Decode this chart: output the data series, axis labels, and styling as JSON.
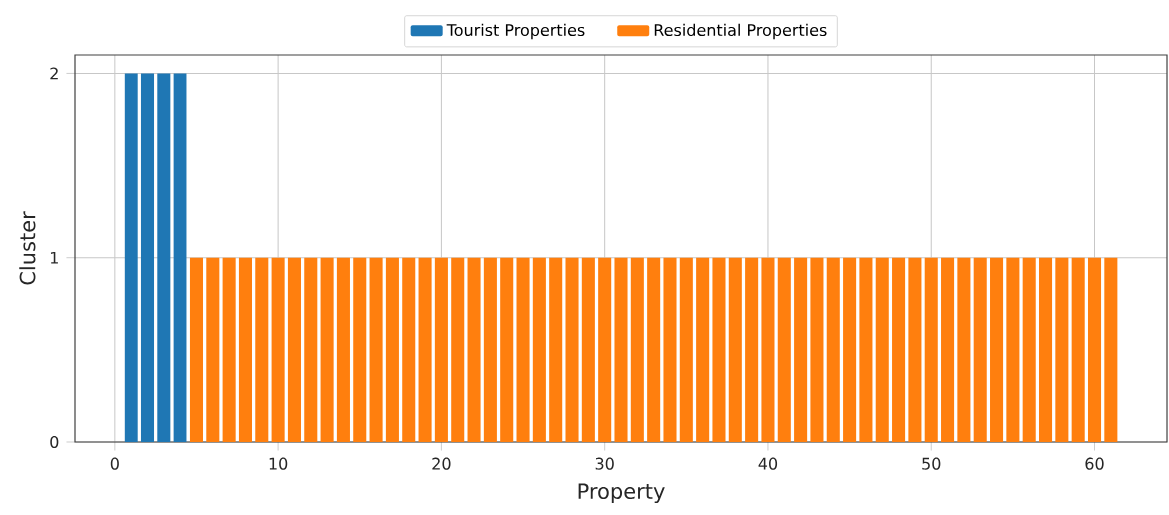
{
  "chart_data": {
    "type": "bar",
    "xlabel": "Property",
    "ylabel": "Cluster",
    "series": [
      {
        "name": "Tourist Properties",
        "color": "#1f77b4",
        "x": [
          1,
          2,
          3,
          4
        ],
        "values": [
          2,
          2,
          2,
          2
        ]
      },
      {
        "name": "Residential Properties",
        "color": "#ff7f0e",
        "x": [
          5,
          6,
          7,
          8,
          9,
          10,
          11,
          12,
          13,
          14,
          15,
          16,
          17,
          18,
          19,
          20,
          21,
          22,
          23,
          24,
          25,
          26,
          27,
          28,
          29,
          30,
          31,
          32,
          33,
          34,
          35,
          36,
          37,
          38,
          39,
          40,
          41,
          42,
          43,
          44,
          45,
          46,
          47,
          48,
          49,
          50,
          51,
          52,
          53,
          54,
          55,
          56,
          57,
          58,
          59,
          60,
          61
        ],
        "values": [
          1,
          1,
          1,
          1,
          1,
          1,
          1,
          1,
          1,
          1,
          1,
          1,
          1,
          1,
          1,
          1,
          1,
          1,
          1,
          1,
          1,
          1,
          1,
          1,
          1,
          1,
          1,
          1,
          1,
          1,
          1,
          1,
          1,
          1,
          1,
          1,
          1,
          1,
          1,
          1,
          1,
          1,
          1,
          1,
          1,
          1,
          1,
          1,
          1,
          1,
          1,
          1,
          1,
          1,
          1,
          1,
          1
        ]
      }
    ],
    "xlim": [
      -2.44,
      64.44
    ],
    "ylim": [
      0,
      2.1
    ],
    "xticks": [
      0,
      10,
      20,
      30,
      40,
      50,
      60
    ],
    "yticks": [
      0,
      1,
      2
    ],
    "grid": true,
    "legend": "top"
  }
}
